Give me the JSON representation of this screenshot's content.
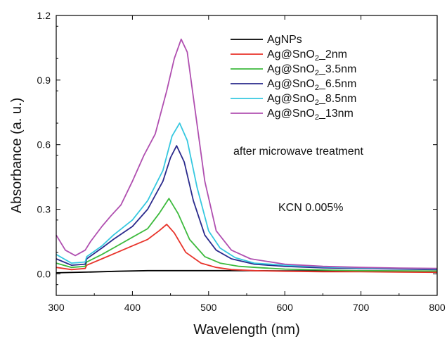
{
  "chart_data": {
    "type": "line",
    "xlabel": "Wavelength (nm)",
    "ylabel": "Absorbance (a. u.)",
    "xlim": [
      300,
      800
    ],
    "ylim": [
      -0.1,
      1.2
    ],
    "xticks": [
      300,
      400,
      500,
      600,
      700,
      800
    ],
    "yticks": [
      0.0,
      0.3,
      0.6,
      0.9,
      1.2
    ],
    "ytick_labels": [
      "0.0",
      "0.3",
      "0.6",
      "0.9",
      "1.2"
    ],
    "grid": false,
    "legend_position": "top-right",
    "annotations": [
      "after microwave treatment",
      "KCN 0.005%"
    ],
    "series": [
      {
        "name": "AgNPs",
        "legend": {
          "pre": "AgNPs",
          "sub": "",
          "post": ""
        },
        "color": "#000000",
        "x": [
          300,
          340,
          380,
          420,
          460,
          500,
          550,
          600,
          700,
          800
        ],
        "y": [
          0.005,
          0.008,
          0.012,
          0.015,
          0.015,
          0.015,
          0.015,
          0.014,
          0.014,
          0.013
        ]
      },
      {
        "name": "Ag@SnO2_2nm",
        "legend": {
          "pre": "Ag@SnO",
          "sub": "2",
          "post": "_2nm"
        },
        "color": "#e8332a",
        "x": [
          300,
          320,
          338,
          340,
          360,
          380,
          400,
          420,
          435,
          445,
          455,
          470,
          490,
          510,
          530,
          560,
          600,
          650,
          700,
          750,
          800
        ],
        "y": [
          0.03,
          0.02,
          0.025,
          0.04,
          0.07,
          0.1,
          0.13,
          0.16,
          0.2,
          0.23,
          0.19,
          0.1,
          0.05,
          0.03,
          0.02,
          0.015,
          0.012,
          0.01,
          0.01,
          0.008,
          0.007
        ]
      },
      {
        "name": "Ag@SnO2_3.5nm",
        "legend": {
          "pre": "Ag@SnO",
          "sub": "2",
          "post": "_3.5nm"
        },
        "color": "#3dba3d",
        "x": [
          300,
          320,
          338,
          340,
          360,
          380,
          400,
          420,
          435,
          448,
          460,
          475,
          495,
          515,
          540,
          570,
          600,
          650,
          700,
          750,
          800
        ],
        "y": [
          0.05,
          0.03,
          0.035,
          0.055,
          0.09,
          0.13,
          0.17,
          0.21,
          0.28,
          0.35,
          0.28,
          0.16,
          0.08,
          0.05,
          0.035,
          0.028,
          0.022,
          0.018,
          0.015,
          0.014,
          0.013
        ]
      },
      {
        "name": "Ag@SnO2_6.5nm",
        "legend": {
          "pre": "Ag@SnO",
          "sub": "2",
          "post": "_6.5nm"
        },
        "color": "#2a2a8c",
        "x": [
          300,
          320,
          338,
          340,
          360,
          375,
          400,
          420,
          440,
          450,
          458,
          468,
          480,
          495,
          510,
          530,
          560,
          600,
          650,
          700,
          750,
          800
        ],
        "y": [
          0.07,
          0.04,
          0.045,
          0.07,
          0.12,
          0.16,
          0.22,
          0.3,
          0.43,
          0.54,
          0.595,
          0.52,
          0.34,
          0.18,
          0.11,
          0.07,
          0.045,
          0.035,
          0.028,
          0.025,
          0.022,
          0.02
        ]
      },
      {
        "name": "Ag@SnO2_8.5nm",
        "legend": {
          "pre": "Ag@SnO",
          "sub": "2",
          "post": "_8.5nm"
        },
        "color": "#36c8e0",
        "x": [
          300,
          320,
          338,
          340,
          360,
          375,
          400,
          420,
          440,
          452,
          462,
          472,
          485,
          500,
          515,
          535,
          560,
          600,
          650,
          700,
          750,
          800
        ],
        "y": [
          0.09,
          0.05,
          0.055,
          0.08,
          0.13,
          0.18,
          0.25,
          0.34,
          0.48,
          0.64,
          0.7,
          0.62,
          0.4,
          0.2,
          0.12,
          0.075,
          0.05,
          0.04,
          0.032,
          0.028,
          0.025,
          0.023
        ]
      },
      {
        "name": "Ag@SnO2_13nm",
        "legend": {
          "pre": "Ag@SnO",
          "sub": "2",
          "post": "_13nm"
        },
        "color": "#b04fb0",
        "x": [
          300,
          312,
          325,
          338,
          345,
          360,
          372,
          385,
          400,
          415,
          430,
          445,
          455,
          464,
          472,
          480,
          495,
          510,
          530,
          555,
          600,
          650,
          700,
          750,
          800
        ],
        "y": [
          0.18,
          0.11,
          0.085,
          0.11,
          0.15,
          0.22,
          0.27,
          0.32,
          0.43,
          0.55,
          0.65,
          0.85,
          1.0,
          1.09,
          1.03,
          0.82,
          0.43,
          0.2,
          0.11,
          0.07,
          0.045,
          0.035,
          0.03,
          0.027,
          0.025
        ]
      }
    ]
  }
}
